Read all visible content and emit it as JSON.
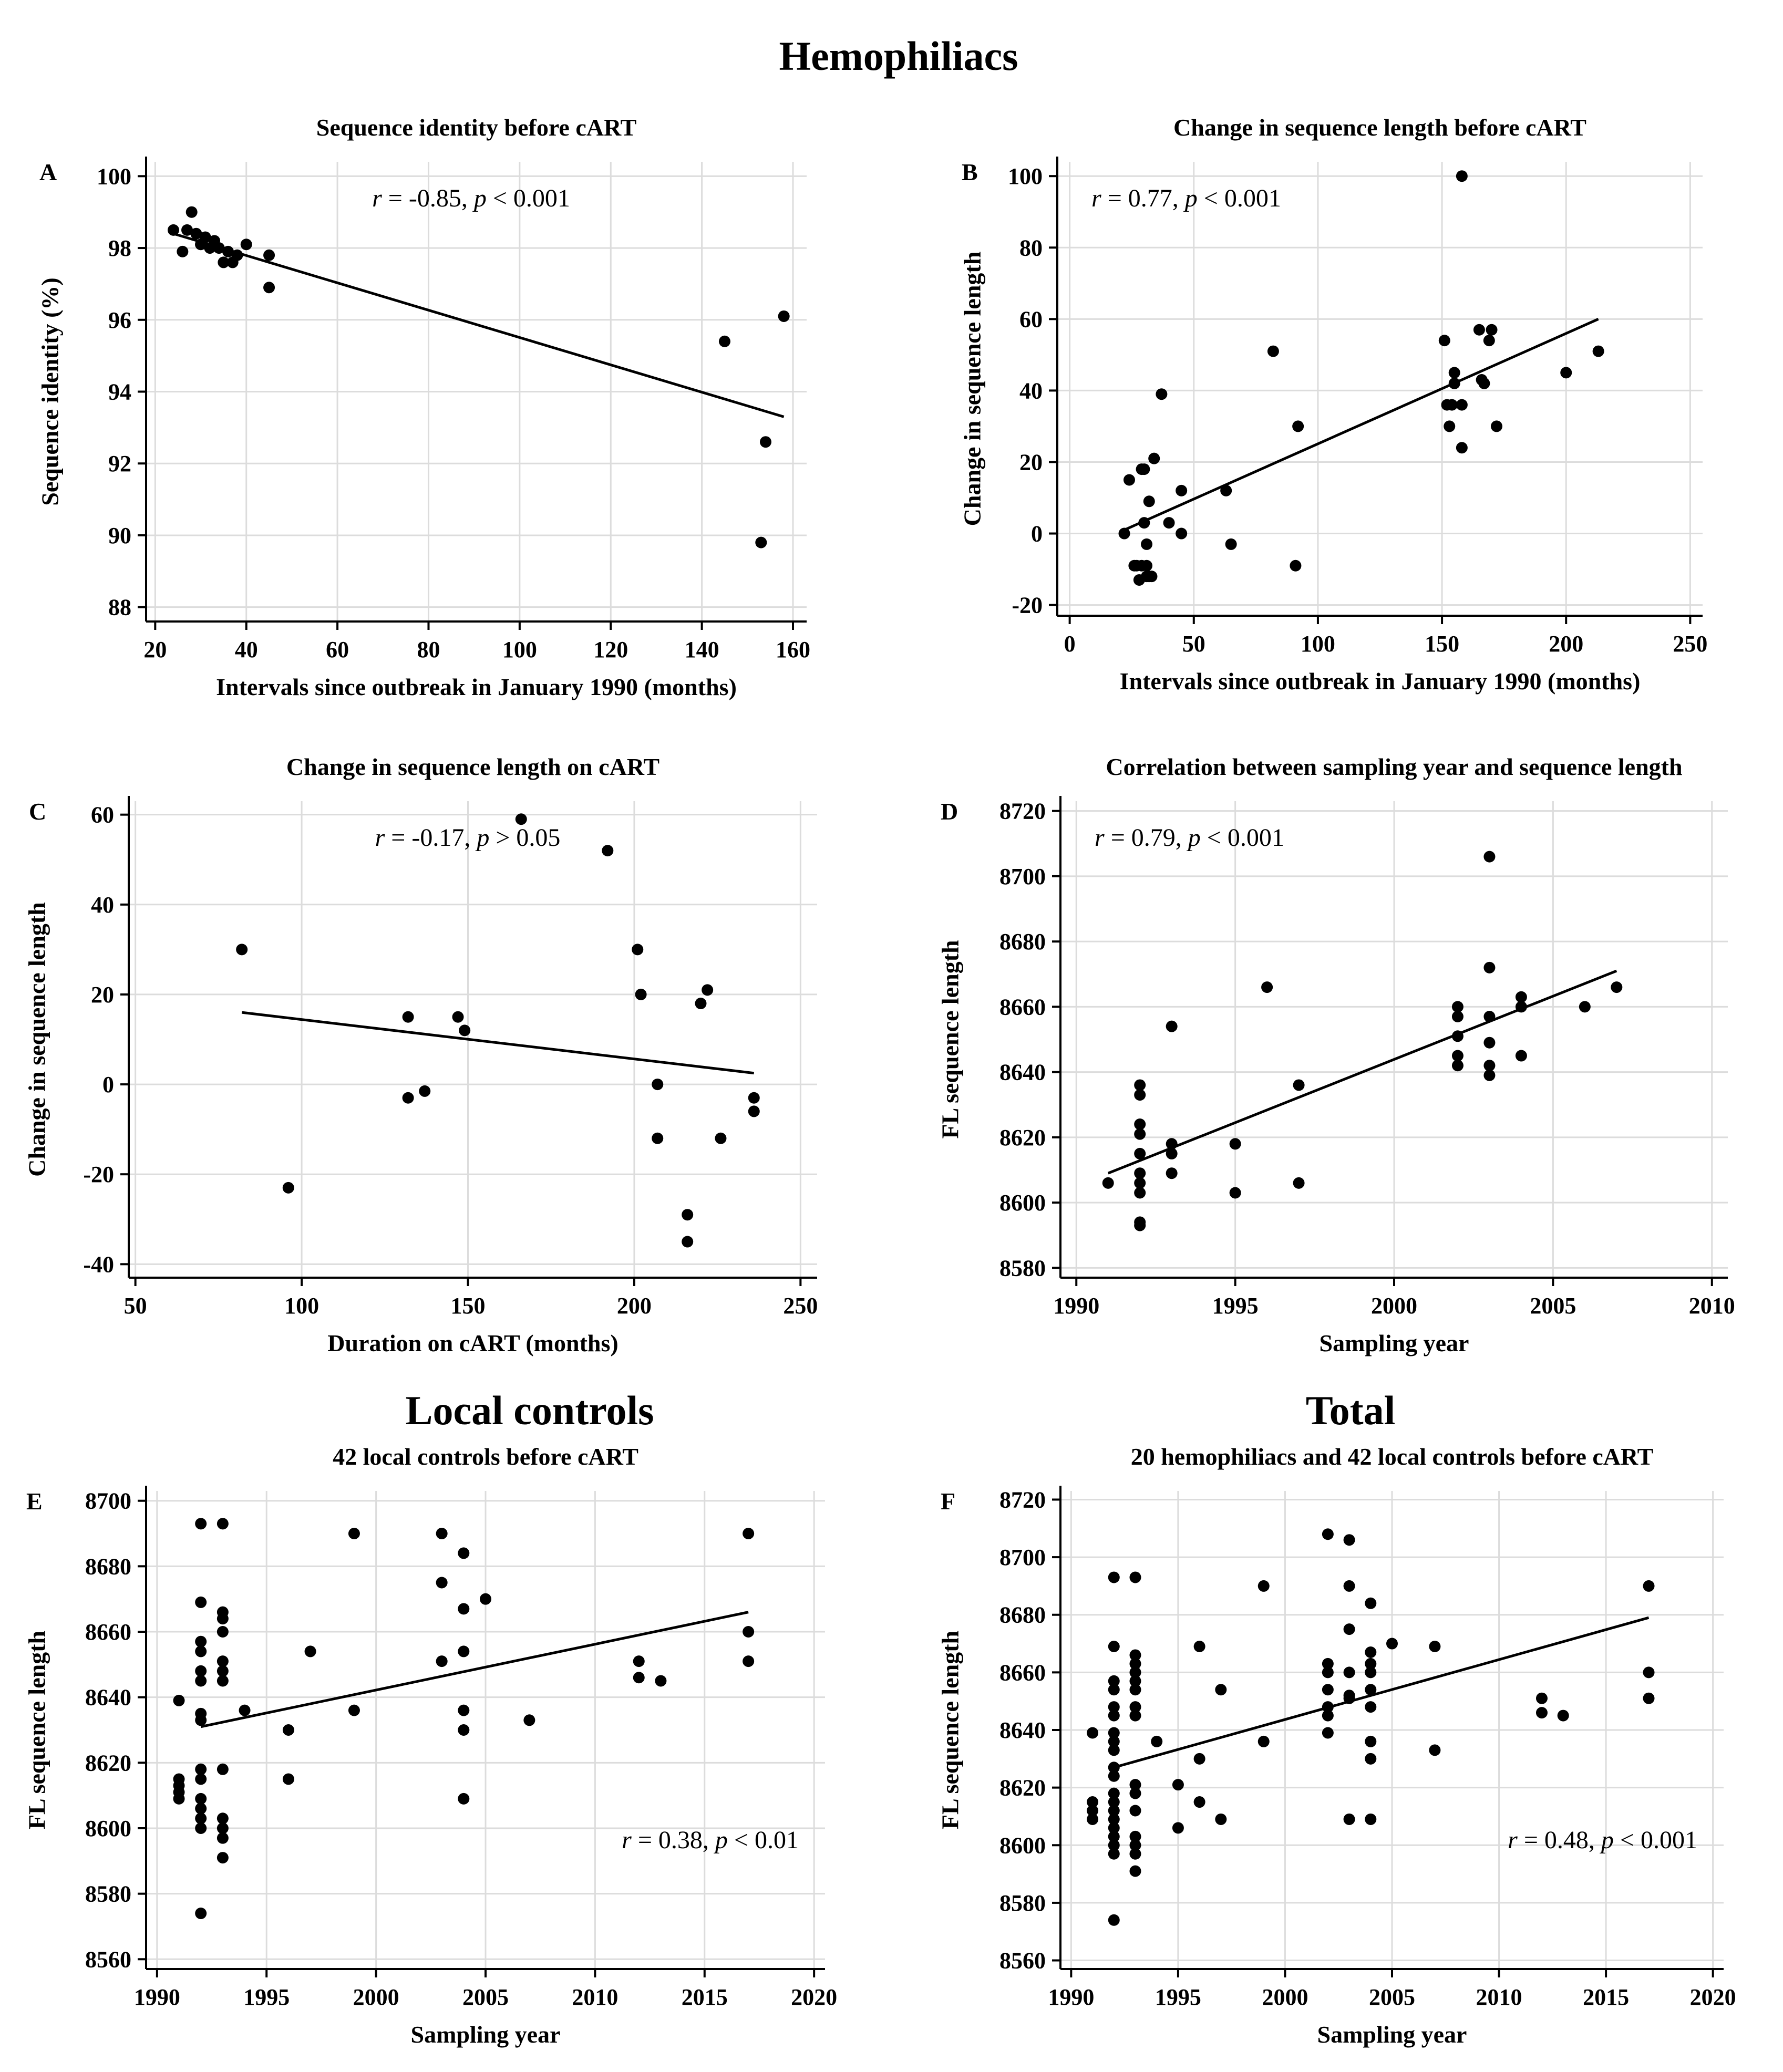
{
  "group_titles": {
    "hemophiliacs": "Hemophiliacs",
    "local_controls": "Local controls",
    "total": "Total"
  },
  "chart_data": [
    {
      "panel": "A",
      "type": "scatter",
      "title": "Sequence identity before cART",
      "xlabel": "Intervals since outbreak in January 1990 (months)",
      "ylabel": "Sequence identity (%)",
      "xlim": [
        18,
        163
      ],
      "ylim": [
        87.6,
        100.4
      ],
      "xticks": [
        20,
        40,
        60,
        80,
        100,
        120,
        140,
        160
      ],
      "yticks": [
        88,
        90,
        92,
        94,
        96,
        98,
        100
      ],
      "grid": true,
      "annotation": {
        "r_label": "r",
        "r_text": " = -0.85, ",
        "p_label": "p",
        "p_text": "  < 0.001"
      },
      "annotation_pos": "top-center",
      "trendline": {
        "x1": 24,
        "y1": 98.4,
        "x2": 158,
        "y2": 93.3
      },
      "points": [
        [
          24,
          98.5
        ],
        [
          26,
          97.9
        ],
        [
          27,
          98.5
        ],
        [
          28,
          99.0
        ],
        [
          29,
          98.4
        ],
        [
          30,
          98.1
        ],
        [
          31,
          98.3
        ],
        [
          32,
          98.0
        ],
        [
          33,
          98.2
        ],
        [
          34,
          98.0
        ],
        [
          35,
          97.6
        ],
        [
          36,
          97.9
        ],
        [
          37,
          97.6
        ],
        [
          38,
          97.8
        ],
        [
          40,
          98.1
        ],
        [
          45,
          97.8
        ],
        [
          45,
          96.9
        ],
        [
          145,
          95.4
        ],
        [
          153,
          89.8
        ],
        [
          154,
          92.6
        ],
        [
          158,
          96.1
        ]
      ]
    },
    {
      "panel": "B",
      "type": "scatter",
      "title": "Change in sequence length before cART",
      "xlabel": "Intervals since outbreak in January 1990 (months)",
      "ylabel": "Change in sequence length",
      "xlim": [
        -5,
        255
      ],
      "ylim": [
        -23,
        104
      ],
      "xticks": [
        0,
        50,
        100,
        150,
        200,
        250
      ],
      "yticks": [
        -20,
        0,
        20,
        40,
        60,
        80,
        100
      ],
      "grid": true,
      "annotation": {
        "r_label": "r",
        "r_text": " = 0.77, ",
        "p_label": "p",
        "p_text": "  < 0.001"
      },
      "annotation_pos": "top-left",
      "trendline": {
        "x1": 22,
        "y1": 1,
        "x2": 213,
        "y2": 60
      },
      "points": [
        [
          22,
          0
        ],
        [
          24,
          15
        ],
        [
          26,
          -9
        ],
        [
          27,
          -9
        ],
        [
          28,
          -13
        ],
        [
          29,
          -9
        ],
        [
          29,
          18
        ],
        [
          30,
          18
        ],
        [
          30,
          3
        ],
        [
          31,
          -9
        ],
        [
          31,
          -12
        ],
        [
          31,
          -3
        ],
        [
          32,
          -12
        ],
        [
          32,
          9
        ],
        [
          33,
          -12
        ],
        [
          34,
          21
        ],
        [
          37,
          39
        ],
        [
          40,
          3
        ],
        [
          45,
          12
        ],
        [
          45,
          0
        ],
        [
          63,
          12
        ],
        [
          65,
          -3
        ],
        [
          82,
          51
        ],
        [
          91,
          -9
        ],
        [
          92,
          30
        ],
        [
          151,
          54
        ],
        [
          152,
          36
        ],
        [
          153,
          30
        ],
        [
          154,
          36
        ],
        [
          155,
          42
        ],
        [
          155,
          45
        ],
        [
          158,
          36
        ],
        [
          158,
          24
        ],
        [
          158,
          100
        ],
        [
          165,
          57
        ],
        [
          166,
          43
        ],
        [
          167,
          42
        ],
        [
          169,
          54
        ],
        [
          170,
          57
        ],
        [
          172,
          30
        ],
        [
          200,
          45
        ],
        [
          213,
          51
        ]
      ]
    },
    {
      "panel": "C",
      "type": "scatter",
      "title": "Change in sequence length on cART",
      "xlabel": "Duration on cART (months)",
      "ylabel": "Change in sequence length",
      "xlim": [
        48,
        255
      ],
      "ylim": [
        -43,
        63
      ],
      "xticks": [
        50,
        100,
        150,
        200,
        250
      ],
      "yticks": [
        -40,
        -20,
        0,
        20,
        40,
        60
      ],
      "grid": true,
      "annotation": {
        "r_label": "r",
        "r_text": " = -0.17, ",
        "p_label": "p",
        "p_text": " > 0.05"
      },
      "annotation_pos": "top-center",
      "trendline": {
        "x1": 82,
        "y1": 16,
        "x2": 236,
        "y2": 2.5
      },
      "points": [
        [
          82,
          30
        ],
        [
          96,
          -23
        ],
        [
          132,
          -3
        ],
        [
          132,
          15
        ],
        [
          137,
          -1.5
        ],
        [
          147,
          15
        ],
        [
          149,
          12
        ],
        [
          166,
          59
        ],
        [
          192,
          52
        ],
        [
          201,
          30
        ],
        [
          202,
          20
        ],
        [
          207,
          0
        ],
        [
          207,
          -12
        ],
        [
          216,
          -29
        ],
        [
          216,
          -35
        ],
        [
          220,
          18
        ],
        [
          222,
          21
        ],
        [
          226,
          -12
        ],
        [
          236,
          -3
        ],
        [
          236,
          -6
        ]
      ]
    },
    {
      "panel": "D",
      "type": "scatter",
      "title": "Correlation between sampling year and sequence length",
      "xlabel": "Sampling year",
      "ylabel": "FL sequence length",
      "xlim": [
        1989.5,
        2010.5
      ],
      "ylim": [
        8577,
        8723
      ],
      "xticks": [
        1990,
        1995,
        2000,
        2005,
        2010
      ],
      "yticks": [
        8580,
        8600,
        8620,
        8640,
        8660,
        8680,
        8700,
        8720
      ],
      "grid": true,
      "annotation": {
        "r_label": "r",
        "r_text": " = 0.79, ",
        "p_label": "p",
        "p_text": "  < 0.001"
      },
      "annotation_pos": "top-left",
      "trendline": {
        "x1": 1991,
        "y1": 8609,
        "x2": 2007,
        "y2": 8671
      },
      "points": [
        [
          1991,
          8606
        ],
        [
          1992,
          8636
        ],
        [
          1992,
          8633
        ],
        [
          1992,
          8624
        ],
        [
          1992,
          8621
        ],
        [
          1992,
          8615
        ],
        [
          1992,
          8609
        ],
        [
          1992,
          8606
        ],
        [
          1992,
          8603
        ],
        [
          1992,
          8594
        ],
        [
          1992,
          8593
        ],
        [
          1993,
          8654
        ],
        [
          1993,
          8618
        ],
        [
          1993,
          8615
        ],
        [
          1993,
          8609
        ],
        [
          1995,
          8618
        ],
        [
          1995,
          8603
        ],
        [
          1996,
          8666
        ],
        [
          1997,
          8636
        ],
        [
          1997,
          8606
        ],
        [
          2002,
          8660
        ],
        [
          2002,
          8657
        ],
        [
          2002,
          8651
        ],
        [
          2002,
          8645
        ],
        [
          2002,
          8642
        ],
        [
          2003,
          8706
        ],
        [
          2003,
          8672
        ],
        [
          2003,
          8657
        ],
        [
          2003,
          8649
        ],
        [
          2003,
          8642
        ],
        [
          2003,
          8639
        ],
        [
          2004,
          8663
        ],
        [
          2004,
          8660
        ],
        [
          2004,
          8645
        ],
        [
          2006,
          8660
        ],
        [
          2007,
          8666
        ]
      ]
    },
    {
      "panel": "E",
      "type": "scatter",
      "title": "42 local controls before cART",
      "xlabel": "Sampling year",
      "ylabel": "FL sequence length",
      "xlim": [
        1989.5,
        2020.5
      ],
      "ylim": [
        8557,
        8703
      ],
      "xticks": [
        1990,
        1995,
        2000,
        2005,
        2010,
        2015,
        2020
      ],
      "yticks": [
        8560,
        8580,
        8600,
        8620,
        8640,
        8660,
        8680,
        8700
      ],
      "grid": true,
      "annotation": {
        "r_label": "r",
        "r_text": " = 0.38, ",
        "p_label": "p",
        "p_text": " < 0.01"
      },
      "annotation_pos": "bottom-right",
      "trendline": {
        "x1": 1992,
        "y1": 8631,
        "x2": 2017,
        "y2": 8666
      },
      "points": [
        [
          1991,
          8639
        ],
        [
          1991,
          8615
        ],
        [
          1991,
          8613
        ],
        [
          1991,
          8611
        ],
        [
          1991,
          8609
        ],
        [
          1992,
          8693
        ],
        [
          1992,
          8669
        ],
        [
          1992,
          8657
        ],
        [
          1992,
          8654
        ],
        [
          1992,
          8648
        ],
        [
          1992,
          8645
        ],
        [
          1992,
          8635
        ],
        [
          1992,
          8633
        ],
        [
          1992,
          8618
        ],
        [
          1992,
          8615
        ],
        [
          1992,
          8609
        ],
        [
          1992,
          8606
        ],
        [
          1992,
          8603
        ],
        [
          1992,
          8600
        ],
        [
          1992,
          8574
        ],
        [
          1993,
          8693
        ],
        [
          1993,
          8666
        ],
        [
          1993,
          8664
        ],
        [
          1993,
          8660
        ],
        [
          1993,
          8651
        ],
        [
          1993,
          8648
        ],
        [
          1993,
          8645
        ],
        [
          1993,
          8618
        ],
        [
          1993,
          8603
        ],
        [
          1993,
          8600
        ],
        [
          1993,
          8597
        ],
        [
          1993,
          8591
        ],
        [
          1994,
          8636
        ],
        [
          1996,
          8630
        ],
        [
          1996,
          8615
        ],
        [
          1997,
          8654
        ],
        [
          1999,
          8690
        ],
        [
          1999,
          8636
        ],
        [
          2003,
          8690
        ],
        [
          2003,
          8675
        ],
        [
          2003,
          8651
        ],
        [
          2004,
          8684
        ],
        [
          2004,
          8667
        ],
        [
          2004,
          8654
        ],
        [
          2004,
          8636
        ],
        [
          2004,
          8630
        ],
        [
          2004,
          8609
        ],
        [
          2005,
          8670
        ],
        [
          2007,
          8633
        ],
        [
          2012,
          8651
        ],
        [
          2012,
          8646
        ],
        [
          2013,
          8645
        ],
        [
          2017,
          8690
        ],
        [
          2017,
          8660
        ],
        [
          2017,
          8651
        ]
      ]
    },
    {
      "panel": "F",
      "type": "scatter",
      "title": "20 hemophiliacs and 42 local controls before cART",
      "xlabel": "Sampling year",
      "ylabel": "FL sequence length",
      "xlim": [
        1989.5,
        2020.5
      ],
      "ylim": [
        8557,
        8723
      ],
      "xticks": [
        1990,
        1995,
        2000,
        2005,
        2010,
        2015,
        2020
      ],
      "yticks": [
        8560,
        8580,
        8600,
        8620,
        8640,
        8660,
        8680,
        8700,
        8720
      ],
      "grid": true,
      "annotation": {
        "r_label": "r",
        "r_text": " = 0.48, ",
        "p_label": "p",
        "p_text": "  < 0.001"
      },
      "annotation_pos": "bottom-right",
      "trendline": {
        "x1": 1992,
        "y1": 8627,
        "x2": 2017,
        "y2": 8679
      },
      "points": [
        [
          1991,
          8639
        ],
        [
          1991,
          8615
        ],
        [
          1991,
          8612
        ],
        [
          1991,
          8609
        ],
        [
          1992,
          8693
        ],
        [
          1992,
          8669
        ],
        [
          1992,
          8657
        ],
        [
          1992,
          8654
        ],
        [
          1992,
          8648
        ],
        [
          1992,
          8645
        ],
        [
          1992,
          8639
        ],
        [
          1992,
          8636
        ],
        [
          1992,
          8633
        ],
        [
          1992,
          8627
        ],
        [
          1992,
          8624
        ],
        [
          1992,
          8618
        ],
        [
          1992,
          8615
        ],
        [
          1992,
          8612
        ],
        [
          1992,
          8609
        ],
        [
          1992,
          8606
        ],
        [
          1992,
          8603
        ],
        [
          1992,
          8600
        ],
        [
          1992,
          8597
        ],
        [
          1992,
          8574
        ],
        [
          1993,
          8693
        ],
        [
          1993,
          8666
        ],
        [
          1993,
          8663
        ],
        [
          1993,
          8660
        ],
        [
          1993,
          8657
        ],
        [
          1993,
          8654
        ],
        [
          1993,
          8648
        ],
        [
          1993,
          8645
        ],
        [
          1993,
          8621
        ],
        [
          1993,
          8618
        ],
        [
          1993,
          8612
        ],
        [
          1993,
          8603
        ],
        [
          1993,
          8600
        ],
        [
          1993,
          8597
        ],
        [
          1993,
          8591
        ],
        [
          1994,
          8636
        ],
        [
          1995,
          8621
        ],
        [
          1995,
          8606
        ],
        [
          1996,
          8669
        ],
        [
          1996,
          8630
        ],
        [
          1996,
          8615
        ],
        [
          1997,
          8654
        ],
        [
          1997,
          8609
        ],
        [
          1999,
          8690
        ],
        [
          1999,
          8636
        ],
        [
          2002,
          8708
        ],
        [
          2002,
          8663
        ],
        [
          2002,
          8660
        ],
        [
          2002,
          8654
        ],
        [
          2002,
          8648
        ],
        [
          2002,
          8645
        ],
        [
          2002,
          8639
        ],
        [
          2003,
          8706
        ],
        [
          2003,
          8690
        ],
        [
          2003,
          8675
        ],
        [
          2003,
          8660
        ],
        [
          2003,
          8652
        ],
        [
          2003,
          8651
        ],
        [
          2003,
          8609
        ],
        [
          2004,
          8684
        ],
        [
          2004,
          8667
        ],
        [
          2004,
          8663
        ],
        [
          2004,
          8660
        ],
        [
          2004,
          8654
        ],
        [
          2004,
          8648
        ],
        [
          2004,
          8636
        ],
        [
          2004,
          8630
        ],
        [
          2004,
          8609
        ],
        [
          2005,
          8670
        ],
        [
          2007,
          8669
        ],
        [
          2007,
          8633
        ],
        [
          2012,
          8651
        ],
        [
          2012,
          8646
        ],
        [
          2013,
          8645
        ],
        [
          2017,
          8690
        ],
        [
          2017,
          8660
        ],
        [
          2017,
          8651
        ]
      ]
    }
  ]
}
